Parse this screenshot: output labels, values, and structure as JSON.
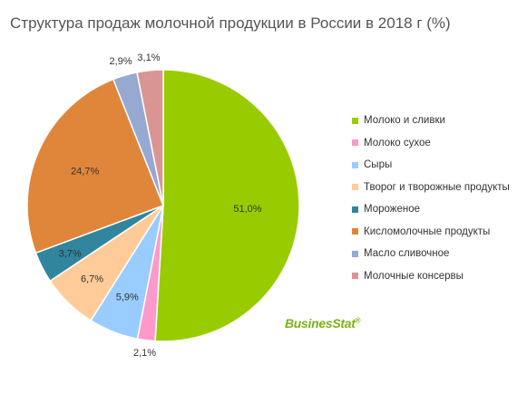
{
  "chart_data": {
    "type": "pie",
    "title": "Структура продаж молочной продукции в России в 2018 г (%)",
    "legend_position": "right",
    "slices": [
      {
        "name": "Молоко и сливки",
        "value": 51.0,
        "label": "51,0%",
        "color": "#99cc00"
      },
      {
        "name": "Молоко сухое",
        "value": 2.1,
        "label": "2,1%",
        "color": "#ff99cc"
      },
      {
        "name": "Сыры",
        "value": 5.9,
        "label": "5,9%",
        "color": "#99ccff"
      },
      {
        "name": "Творог и творожные продукты",
        "value": 6.7,
        "label": "6,7%",
        "color": "#ffcc99"
      },
      {
        "name": "Мороженое",
        "value": 3.7,
        "label": "3,7%",
        "color": "#31859c"
      },
      {
        "name": "Кисломолочные продукты",
        "value": 24.7,
        "label": "24,7%",
        "color": "#e0863b"
      },
      {
        "name": "Масло сливочное",
        "value": 2.9,
        "label": "2,9%",
        "color": "#95a9d1"
      },
      {
        "name": "Молочные консервы",
        "value": 3.1,
        "label": "3,1%",
        "color": "#d99594"
      }
    ]
  },
  "logo": {
    "text": "BusinesStat",
    "mark": "®"
  }
}
